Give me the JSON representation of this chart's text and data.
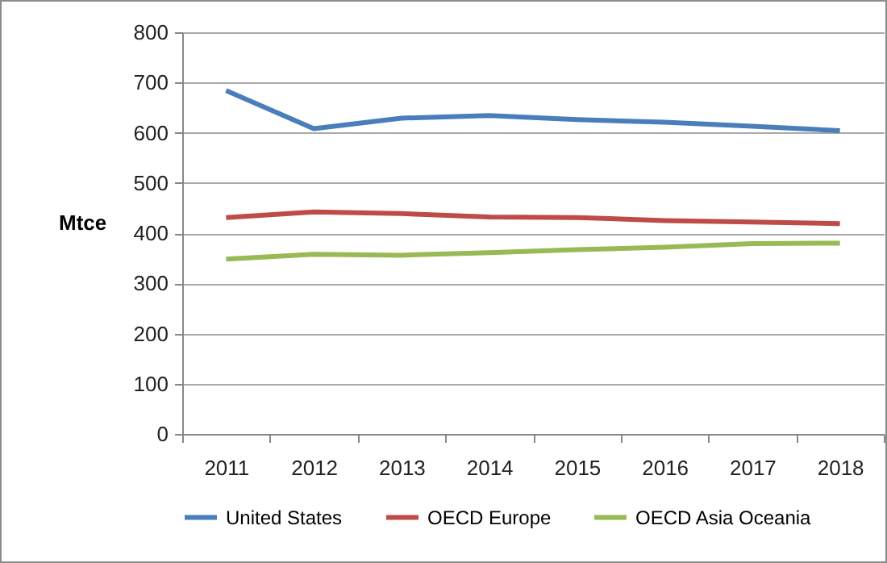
{
  "chart_data": {
    "type": "line",
    "ylabel": "Mtce",
    "categories": [
      "2011",
      "2012",
      "2013",
      "2014",
      "2015",
      "2016",
      "2017",
      "2018"
    ],
    "series": [
      {
        "name": "United States",
        "color": "#4a7ebb",
        "values": [
          684,
          608,
          629,
          634,
          626,
          621,
          613,
          604
        ]
      },
      {
        "name": "OECD Europe",
        "color": "#be4b48",
        "values": [
          431,
          442,
          439,
          432,
          431,
          425,
          422,
          419
        ]
      },
      {
        "name": "OECD Asia Oceania",
        "color": "#98b954",
        "values": [
          348,
          358,
          356,
          361,
          367,
          372,
          379,
          380
        ]
      }
    ],
    "ylim": [
      0,
      800
    ],
    "yticks": [
      0,
      100,
      200,
      300,
      400,
      500,
      600,
      700,
      800
    ],
    "grid": "y",
    "legend": "bottom",
    "marker": "none",
    "line_style": "solid"
  }
}
